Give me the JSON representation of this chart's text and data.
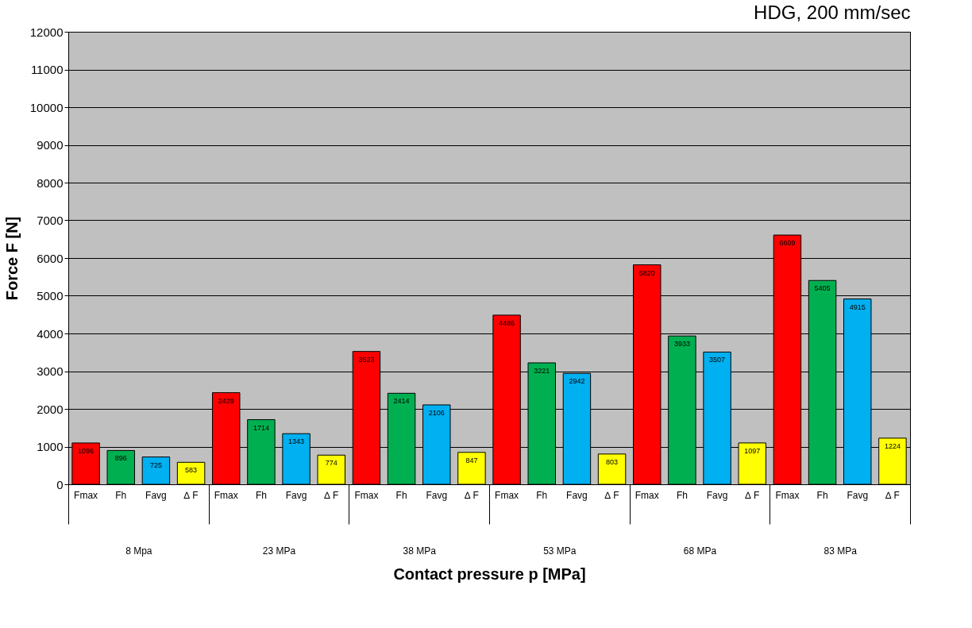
{
  "chart_data": {
    "type": "bar",
    "title": "HDG, 200 mm/sec",
    "xlabel": "Contact pressure p [MPa]",
    "ylabel": "Force F [N]",
    "categories": [
      "8 Mpa",
      "23 MPa",
      "38 MPa",
      "53 MPa",
      "68 MPa",
      "83 MPa"
    ],
    "series": [
      {
        "name": "Fmax",
        "color": "#ff0000",
        "values": [
          1096,
          2429,
          3523,
          4486,
          5820,
          6609
        ]
      },
      {
        "name": "Fh",
        "color": "#00b050",
        "values": [
          896,
          1714,
          2414,
          3221,
          3933,
          5405
        ]
      },
      {
        "name": "Favg",
        "color": "#00b0f0",
        "values": [
          725,
          1343,
          2106,
          2942,
          3507,
          4915
        ]
      },
      {
        "name": "∆ F",
        "color": "#ffff00",
        "values": [
          583,
          774,
          847,
          803,
          1097,
          1224
        ]
      }
    ],
    "ylim": [
      0,
      12000
    ],
    "yticks": [
      0,
      1000,
      2000,
      3000,
      4000,
      5000,
      6000,
      7000,
      8000,
      9000,
      10000,
      11000,
      12000
    ],
    "grid": "y",
    "data_labels": true
  }
}
